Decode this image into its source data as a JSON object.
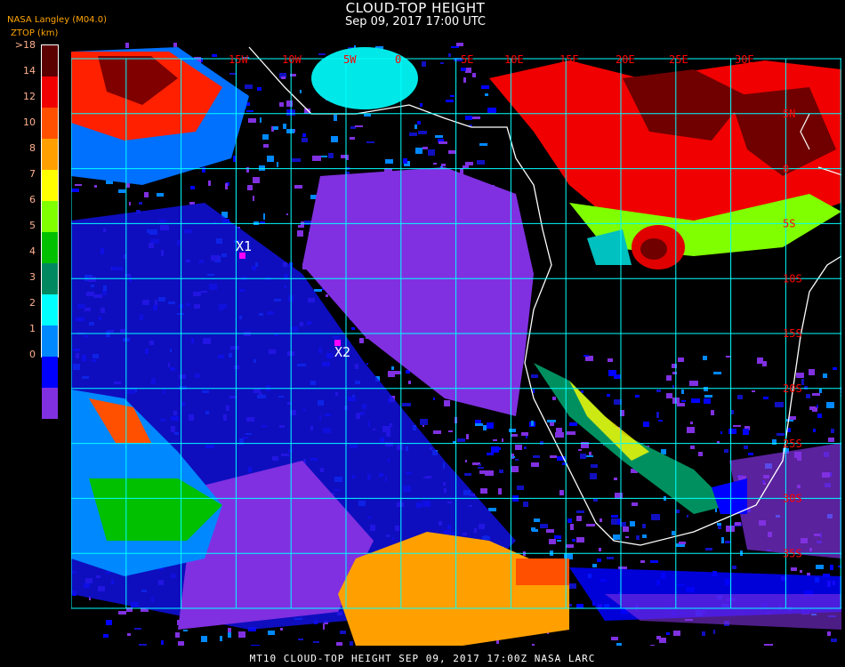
{
  "header": {
    "title": "CLOUD-TOP HEIGHT",
    "subtitle": "Sep 09, 2017 17:00 UTC",
    "organization": "NASA Langley (M04.0)",
    "unit_label": "ZTOP (km)"
  },
  "legend": {
    "labels": [
      ">18",
      "14",
      "12",
      "10",
      "8",
      "7",
      "6",
      "5",
      "4",
      "3",
      "2",
      "1",
      "0"
    ],
    "colors": [
      "#5a0000",
      "#f00000",
      "#ff5000",
      "#ffa000",
      "#ffff00",
      "#80ff00",
      "#00c000",
      "#008860",
      "#00ffff",
      "#0088ff",
      "#0000ff",
      "#8030e0"
    ]
  },
  "map": {
    "longitude_labels": [
      "15W",
      "10W",
      "5W",
      "0",
      "5E",
      "10E",
      "15E",
      "20E",
      "25E",
      "30E"
    ],
    "latitude_labels": [
      "5N",
      "0",
      "5S",
      "10S",
      "15S",
      "20S",
      "25S",
      "30S",
      "35S"
    ],
    "grid_color": "#00ffff",
    "label_color": "#ff0000",
    "coastline_color": "#ffffff",
    "markers": [
      {
        "label": "X1"
      },
      {
        "label": "X2"
      }
    ],
    "marker_color": "#ff00ff"
  },
  "footer": "MT10  CLOUD-TOP HEIGHT   SEP 09, 2017 17:00Z   NASA LARC"
}
